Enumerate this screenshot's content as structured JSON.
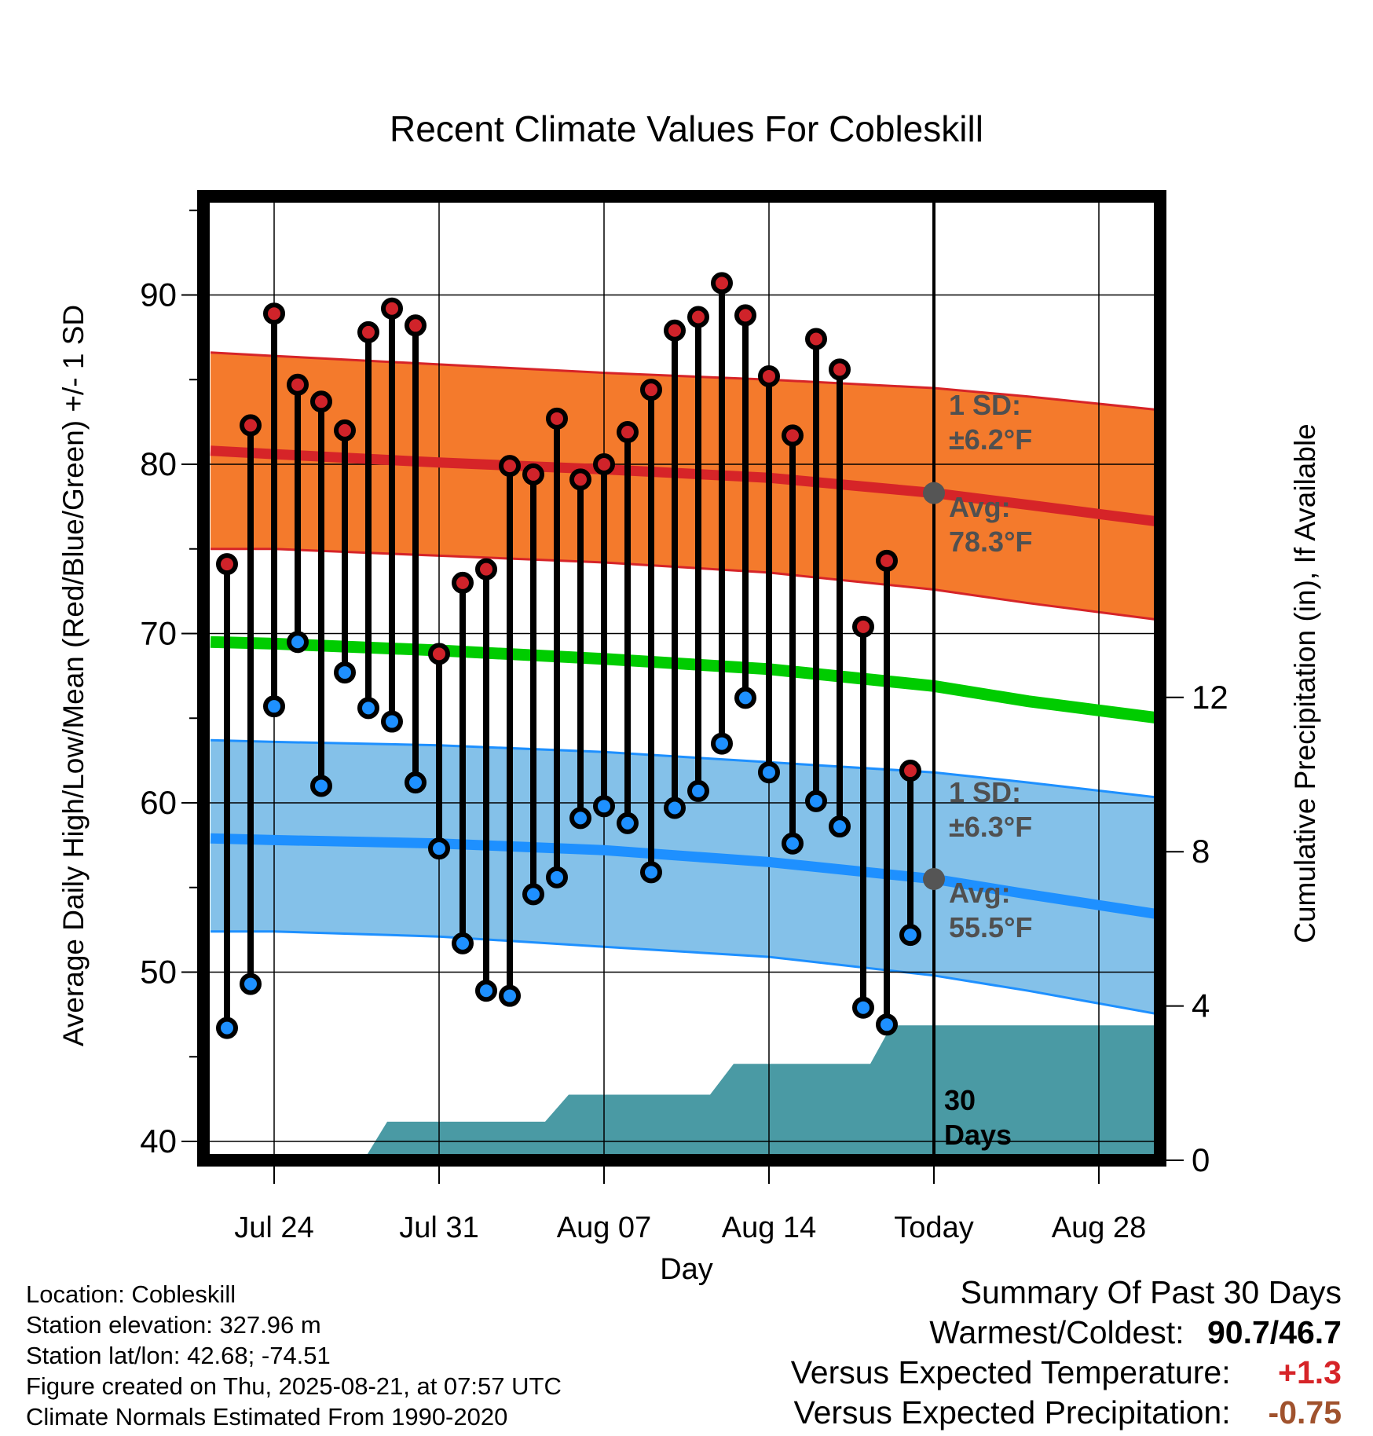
{
  "chart_data": {
    "type": "line",
    "title": "Recent Climate Values For Cobleskill",
    "xlabel": "Day",
    "ylabel": "Average Daily High/Low/Mean (Red/Blue/Green) +/- 1 SD",
    "y2label": "Cumulative Precipitation (in), If Available",
    "x_tick_labels": [
      "Jul 24",
      "Jul 31",
      "Aug 07",
      "Aug 14",
      "Today",
      "Aug 28"
    ],
    "x_ticks_day_offset": [
      0,
      7,
      14,
      21,
      28,
      35
    ],
    "x_range_day_offset": [
      -2.7,
      37.6
    ],
    "ylim": [
      39,
      96
    ],
    "y_ticks": [
      40,
      50,
      60,
      70,
      80,
      90
    ],
    "y2lim": [
      0,
      22.5
    ],
    "y2_ticks": [
      0,
      4,
      8,
      12
    ],
    "grid": true,
    "today_offset": 28,
    "daily_day_offset": [
      -2,
      -1,
      0,
      1,
      2,
      3,
      4,
      5,
      6,
      7,
      8,
      9,
      10,
      11,
      12,
      13,
      14,
      15,
      16,
      17,
      18,
      19,
      20,
      21,
      22,
      23,
      24,
      25,
      26,
      27
    ],
    "daily_high": [
      74.1,
      82.3,
      88.9,
      84.7,
      83.7,
      82.0,
      87.8,
      89.2,
      88.2,
      68.8,
      73.0,
      73.8,
      79.9,
      79.4,
      82.7,
      79.1,
      80.0,
      81.9,
      84.4,
      87.9,
      88.7,
      90.7,
      88.8,
      85.2,
      81.7,
      87.4,
      85.6,
      70.4,
      74.3,
      61.9
    ],
    "daily_low": [
      46.7,
      49.3,
      65.7,
      69.5,
      61.0,
      67.7,
      65.6,
      64.8,
      61.2,
      57.3,
      51.7,
      48.9,
      48.6,
      54.6,
      55.6,
      59.1,
      59.8,
      58.8,
      55.9,
      59.7,
      60.7,
      63.5,
      66.2,
      61.8,
      57.6,
      60.1,
      58.6,
      47.9,
      46.9,
      52.2
    ],
    "normals_day_offset": [
      -2.7,
      0,
      7,
      14,
      21,
      28,
      32,
      37.6
    ],
    "normal_high": [
      80.8,
      80.6,
      80.1,
      79.7,
      79.2,
      78.3,
      77.6,
      76.6
    ],
    "normal_high_upper": [
      86.6,
      86.4,
      85.9,
      85.4,
      85.0,
      84.5,
      84.0,
      83.2
    ],
    "normal_high_lower": [
      75.0,
      75.0,
      74.6,
      74.2,
      73.6,
      72.6,
      71.8,
      70.8
    ],
    "normal_mean": [
      69.5,
      69.4,
      69.0,
      68.5,
      67.9,
      66.9,
      66.0,
      65.0
    ],
    "normal_low": [
      57.9,
      57.8,
      57.6,
      57.2,
      56.5,
      55.5,
      54.6,
      53.4
    ],
    "normal_low_upper": [
      63.7,
      63.6,
      63.4,
      63.0,
      62.4,
      61.8,
      61.2,
      60.3
    ],
    "normal_low_lower": [
      52.4,
      52.4,
      52.1,
      51.5,
      50.9,
      49.8,
      48.9,
      47.5
    ],
    "precip_cumulative": {
      "x": [
        -2.7,
        0.3,
        1.2,
        3.8,
        4.8,
        11.5,
        12.5,
        18.5,
        19.5,
        25.3,
        26.2,
        37.6
      ],
      "y": [
        0,
        0,
        0,
        0,
        1.0,
        1.0,
        1.7,
        1.7,
        2.5,
        2.5,
        3.5,
        3.5
      ]
    },
    "annotations": [
      {
        "id": "high_sd_label",
        "lines": [
          "1 SD:",
          "±6.2°F"
        ]
      },
      {
        "id": "high_avg_label",
        "lines": [
          "Avg:",
          "78.3°F"
        ],
        "value": 78.3
      },
      {
        "id": "low_sd_label",
        "lines": [
          "1 SD:",
          "±6.3°F"
        ]
      },
      {
        "id": "low_avg_label",
        "lines": [
          "Avg:",
          "55.5°F"
        ],
        "value": 55.5
      },
      {
        "id": "days_label",
        "lines": [
          "30",
          "Days"
        ]
      }
    ],
    "colors": {
      "high_band": "#f47a2c",
      "high_line": "#d62428",
      "mean_line": "#00cc00",
      "low_band": "#84c1e9",
      "low_line": "#1e90ff",
      "precip_fill": "#4a9aa4",
      "high_dot": "#d0232a",
      "low_dot": "#1e90ff",
      "avg_marker": "#555555",
      "annotation_text": "#505050"
    }
  },
  "metadata_lines": [
    "Location: Cobleskill",
    "Station elevation: 327.96 m",
    "Station lat/lon: 42.68; -74.51",
    "Figure created on Thu, 2025-08-21, at 07:57 UTC",
    "Climate Normals Estimated From 1990-2020"
  ],
  "summary": {
    "heading": "Summary Of Past 30 Days",
    "warmest_coldest_label": "Warmest/Coldest:",
    "warmest": "90.7",
    "separator": "/",
    "coldest": "46.7",
    "temp_label": "Versus Expected Temperature:",
    "temp_value": "+1.3",
    "temp_color": "#d62428",
    "precip_label": "Versus Expected Precipitation:",
    "precip_value": "-0.75",
    "precip_color": "#a0522d"
  }
}
